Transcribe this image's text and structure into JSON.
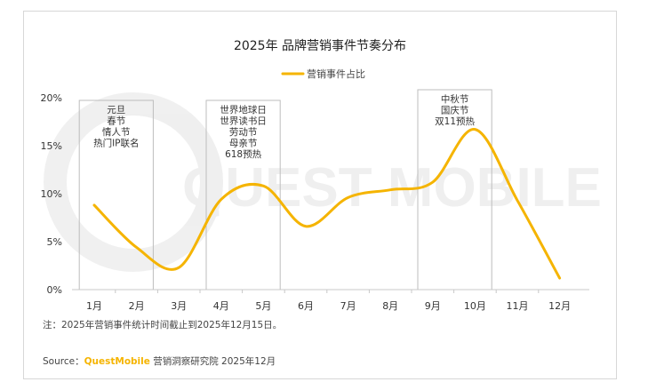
{
  "chart_data": {
    "type": "line",
    "title": "2025年 品牌营销事件节奏分布",
    "legend": {
      "label": "营销事件占比",
      "placement": "top-center"
    },
    "categories": [
      "1月",
      "2月",
      "3月",
      "4月",
      "5月",
      "6月",
      "7月",
      "8月",
      "9月",
      "10月",
      "11月",
      "12月"
    ],
    "series": [
      {
        "name": "营销事件占比",
        "color": "#F5B400",
        "values": [
          8.8,
          4.4,
          2.3,
          9.4,
          10.8,
          6.6,
          9.6,
          10.4,
          11.2,
          16.7,
          9.3,
          1.2
        ]
      }
    ],
    "y_ticks": [
      "0%",
      "5%",
      "10%",
      "15%",
      "20%"
    ],
    "ylim": [
      0,
      20
    ],
    "grid": false,
    "annotations": [
      {
        "from": "1月",
        "to": "2月",
        "lines": [
          "元旦",
          "春节",
          "情人节",
          "热门IP联名"
        ]
      },
      {
        "from": "4月",
        "to": "5月",
        "lines": [
          "世界地球日",
          "世界读书日",
          "劳动节",
          "母亲节",
          "618预热"
        ]
      },
      {
        "from": "9月",
        "to": "10月",
        "lines": [
          "中秋节",
          "国庆节",
          "双11预热"
        ]
      }
    ],
    "watermark": "QUEST MOBILE"
  },
  "footer": {
    "note": "注：2025年营销事件统计时间截止到2025年12月15日。",
    "source_prefix": "Source：",
    "source_brand": "QuestMobile",
    "source_rest": " 营销洞察研究院 2025年12月"
  },
  "colors": {
    "line": "#F5B400",
    "brand": "#F5B400",
    "text": "#333333",
    "box": "#bdbdbd"
  }
}
